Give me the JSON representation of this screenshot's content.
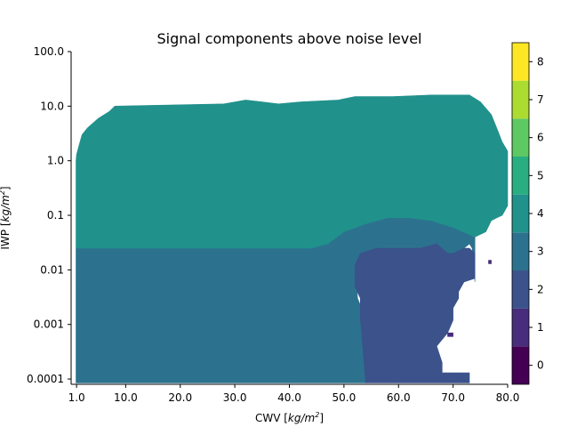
{
  "chart_data": {
    "type": "heatmap",
    "title": "Signal components above noise level",
    "xlabel": {
      "prefix": "CWV [",
      "unit_base": "kg/m",
      "unit_exp": "2",
      "suffix": "]"
    },
    "ylabel": {
      "prefix": "IWP [",
      "unit_base": "kg/m",
      "unit_exp": "2",
      "suffix": "]"
    },
    "x_scale": "linear",
    "y_scale": "log",
    "xlim": [
      0,
      80
    ],
    "ylim": [
      8e-05,
      100
    ],
    "x_ticks": [
      1,
      10,
      20,
      30,
      40,
      50,
      60,
      70,
      80
    ],
    "x_tick_labels": [
      "1.0",
      "10.0",
      "20.0",
      "30.0",
      "40.0",
      "50.0",
      "60.0",
      "70.0",
      "80.0"
    ],
    "y_ticks": [
      0.0001,
      0.001,
      0.01,
      0.1,
      1,
      10,
      100
    ],
    "y_tick_labels": [
      "0.0001",
      "0.001",
      "0.01",
      "0.1",
      "1.0",
      "10.0",
      "100.0"
    ],
    "colorbar": {
      "levels": [
        0,
        1,
        2,
        3,
        4,
        5,
        6,
        7,
        8
      ],
      "tick_labels": [
        "0",
        "1",
        "2",
        "3",
        "4",
        "5",
        "6",
        "7",
        "8"
      ],
      "range": [
        -0.5,
        8.5
      ],
      "colors": [
        "#440154",
        "#472d7b",
        "#3b528b",
        "#2c728e",
        "#21918c",
        "#28ae80",
        "#5ec962",
        "#addc30",
        "#fde725"
      ]
    },
    "regions": [
      {
        "name": "value-3 region",
        "value": 3,
        "polygon": [
          [
            0.9,
            8.5e-05
          ],
          [
            54,
            8.5e-05
          ],
          [
            54,
            0.0013
          ],
          [
            52.5,
            0.003
          ],
          [
            52,
            0.02
          ],
          [
            53,
            0.05
          ],
          [
            54,
            0.06
          ],
          [
            58,
            0.07
          ],
          [
            66,
            0.065
          ],
          [
            67,
            0.04
          ],
          [
            69,
            0.02
          ],
          [
            70,
            0.006
          ],
          [
            0.9,
            0.006
          ]
        ]
      },
      {
        "name": "value-3 upper band",
        "value": 3,
        "polygon": [
          [
            0.9,
            0.006
          ],
          [
            70,
            0.006
          ],
          [
            72,
            0.025
          ],
          [
            73,
            0.03
          ],
          [
            73.5,
            0.025
          ],
          [
            74,
            0.006
          ],
          [
            74,
            0.04
          ],
          [
            70,
            0.06
          ],
          [
            66,
            0.08
          ],
          [
            62,
            0.09
          ],
          [
            58,
            0.09
          ],
          [
            54,
            0.07
          ],
          [
            50,
            0.05
          ],
          [
            47,
            0.03
          ],
          [
            44,
            0.025
          ],
          [
            0.9,
            0.025
          ]
        ]
      },
      {
        "name": "value-2 region",
        "value": 2,
        "polygon": [
          [
            54,
            8.5e-05
          ],
          [
            73,
            8.5e-05
          ],
          [
            73,
            0.00013
          ],
          [
            68,
            0.00013
          ],
          [
            68,
            0.0002
          ],
          [
            67,
            0.0004
          ],
          [
            69,
            0.0007
          ],
          [
            70,
            0.0012
          ],
          [
            70,
            0.002
          ],
          [
            71,
            0.003
          ],
          [
            71,
            0.004
          ],
          [
            72,
            0.006
          ],
          [
            74,
            0.007
          ],
          [
            74,
            0.02
          ],
          [
            73,
            0.025
          ],
          [
            72,
            0.025
          ],
          [
            70,
            0.02
          ],
          [
            69,
            0.02
          ],
          [
            67,
            0.03
          ],
          [
            64,
            0.025
          ],
          [
            56,
            0.025
          ],
          [
            53,
            0.02
          ],
          [
            52,
            0.012
          ],
          [
            52,
            0.005
          ],
          [
            53,
            0.003
          ],
          [
            53,
            0.0013
          ]
        ]
      },
      {
        "name": "value-4 region",
        "value": 4,
        "polygon": [
          [
            0.9,
            0.025
          ],
          [
            44,
            0.025
          ],
          [
            47,
            0.03
          ],
          [
            50,
            0.05
          ],
          [
            54,
            0.07
          ],
          [
            58,
            0.09
          ],
          [
            62,
            0.09
          ],
          [
            66,
            0.08
          ],
          [
            70,
            0.06
          ],
          [
            74,
            0.04
          ],
          [
            76,
            0.05
          ],
          [
            77,
            0.08
          ],
          [
            78,
            0.09
          ],
          [
            79,
            0.1
          ],
          [
            80,
            0.15
          ],
          [
            80,
            1.5
          ],
          [
            79,
            2.2
          ],
          [
            78,
            4
          ],
          [
            77,
            7
          ],
          [
            75,
            12
          ],
          [
            73,
            16
          ],
          [
            66,
            16
          ],
          [
            59,
            15
          ],
          [
            52,
            15
          ],
          [
            49,
            13
          ],
          [
            42,
            12
          ],
          [
            38,
            11
          ],
          [
            35,
            12
          ],
          [
            32,
            13
          ],
          [
            28,
            11
          ],
          [
            8,
            10
          ],
          [
            7,
            8
          ],
          [
            5,
            6
          ],
          [
            3,
            4
          ],
          [
            2,
            3
          ],
          [
            1.5,
            2
          ],
          [
            1,
            1.3
          ],
          [
            0.9,
            1
          ]
        ]
      },
      {
        "name": "value-1 dots",
        "value": 1,
        "polygon": [
          [
            69,
            0.0007
          ],
          [
            70,
            0.0007
          ],
          [
            70,
            0.0006
          ],
          [
            69,
            0.0006
          ]
        ]
      },
      {
        "name": "value-1 dot upper",
        "value": 1,
        "polygon": [
          [
            76.5,
            0.015
          ],
          [
            77,
            0.015
          ],
          [
            77,
            0.013
          ],
          [
            76.5,
            0.013
          ]
        ]
      }
    ]
  }
}
